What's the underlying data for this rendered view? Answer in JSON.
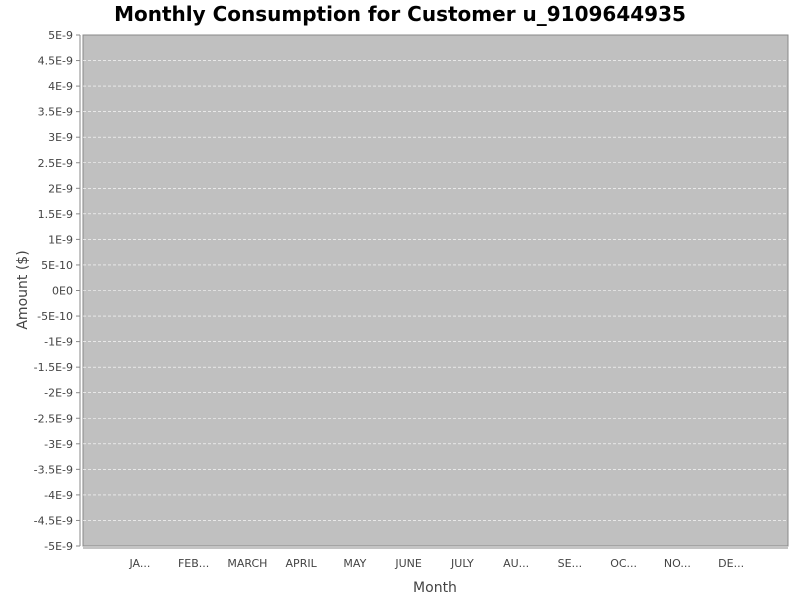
{
  "chart_data": {
    "type": "bar",
    "title": "Monthly Consumption for Customer u_9109644935",
    "xlabel": "Month",
    "ylabel": "Amount ($)",
    "categories": [
      "JA...",
      "FEB...",
      "MARCH",
      "APRIL",
      "MAY",
      "JUNE",
      "JULY",
      "AU...",
      "SE...",
      "OC...",
      "NO...",
      "DE..."
    ],
    "values": [
      0,
      0,
      0,
      0,
      0,
      0,
      0,
      0,
      0,
      0,
      0,
      0
    ],
    "ylim": [
      -5e-09,
      5e-09
    ],
    "yticks": [
      "5E-9",
      "4.5E-9",
      "4E-9",
      "3.5E-9",
      "3E-9",
      "2.5E-9",
      "2E-9",
      "1.5E-9",
      "1E-9",
      "5E-10",
      "0E0",
      "-5E-10",
      "-1E-9",
      "-1.5E-9",
      "-2E-9",
      "-2.5E-9",
      "-3E-9",
      "-3.5E-9",
      "-4E-9",
      "-4.5E-9",
      "-5E-9"
    ],
    "ytick_values": [
      5e-09,
      4.5e-09,
      4e-09,
      3.5e-09,
      3e-09,
      2.5e-09,
      2e-09,
      1.5e-09,
      1e-09,
      5e-10,
      0,
      -5e-10,
      -1e-09,
      -1.5e-09,
      -2e-09,
      -2.5e-09,
      -3e-09,
      -3.5e-09,
      -4e-09,
      -4.5e-09,
      -5e-09
    ],
    "grid": true,
    "colors": {
      "plot_background": "#c0c0c0",
      "gridline": "#ffffff"
    }
  }
}
